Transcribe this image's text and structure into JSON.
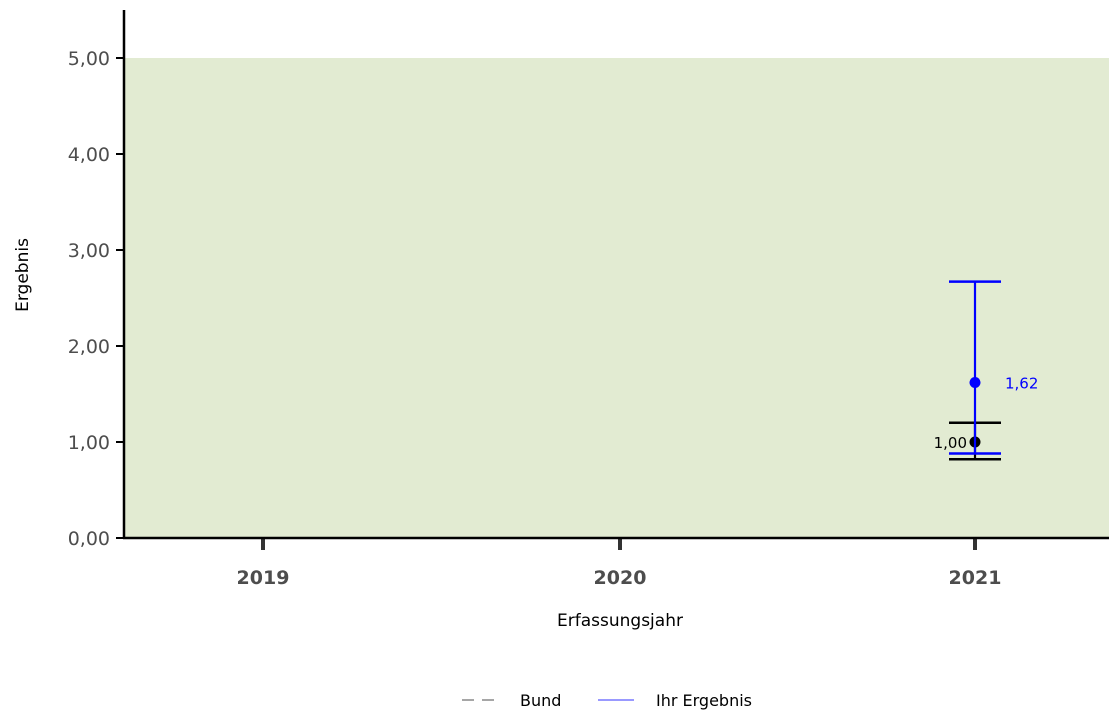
{
  "chart_data": {
    "type": "scatter",
    "xlabel": "Erfassungsjahr",
    "ylabel": "Ergebnis",
    "categories": [
      "2019",
      "2020",
      "2021"
    ],
    "ylim": [
      0,
      5.5
    ],
    "y_ticks": [
      0,
      1,
      2,
      3,
      4,
      5
    ],
    "y_tick_labels": [
      "0,00",
      "1,00",
      "2,00",
      "3,00",
      "4,00",
      "5,00"
    ],
    "reference_band": {
      "from": 0,
      "to": 5,
      "color": "#e2ebd2"
    },
    "grid": false,
    "legend_position": "bottom",
    "series": [
      {
        "name": "Bund",
        "color": "#000000",
        "legend_color": "#a6a6a6",
        "legend_style": "dashed",
        "points": [
          {
            "x": "2021",
            "y": 1.0,
            "lower": 0.82,
            "upper": 1.2,
            "label": "1,00"
          }
        ]
      },
      {
        "name": "Ihr Ergebnis",
        "color": "#0000ff",
        "legend_color": "#9999ff",
        "legend_style": "solid",
        "points": [
          {
            "x": "2021",
            "y": 1.62,
            "lower": 0.88,
            "upper": 2.67,
            "label": "1,62"
          }
        ]
      }
    ]
  }
}
